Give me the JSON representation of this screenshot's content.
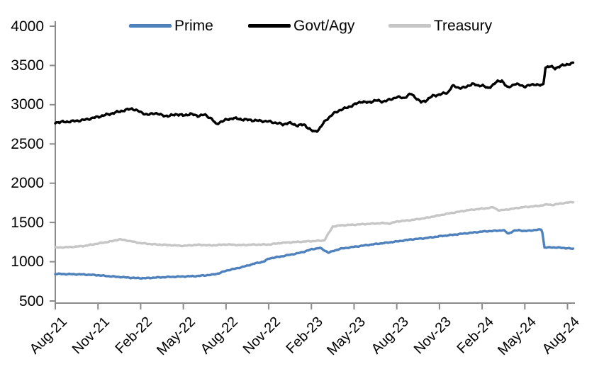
{
  "chart_data": {
    "type": "line",
    "title": "",
    "xlabel": "",
    "ylabel": "",
    "grid": false,
    "legend_position": "top",
    "ylim": [
      500,
      4000
    ],
    "y_ticks": [
      4000,
      3500,
      3000,
      2500,
      2000,
      1500,
      1000,
      500
    ],
    "x_tick_labels": [
      "Aug-21",
      "Nov-21",
      "Feb-22",
      "May-22",
      "Aug-22",
      "Nov-22",
      "Feb-23",
      "May-23",
      "Aug-23",
      "Nov-23",
      "Feb-24",
      "May-24",
      "Aug-24"
    ],
    "x_unit": "month_index_from_Aug-21",
    "x_range_months": [
      0,
      36.4
    ],
    "series": [
      {
        "name": "Treasury",
        "color": "#C6C6C6",
        "points_month_value": [
          [
            0,
            1180
          ],
          [
            1,
            1186
          ],
          [
            2,
            1200
          ],
          [
            3,
            1232
          ],
          [
            4,
            1262
          ],
          [
            4.5,
            1286
          ],
          [
            5,
            1272
          ],
          [
            6,
            1236
          ],
          [
            7,
            1221
          ],
          [
            8,
            1212
          ],
          [
            9,
            1202
          ],
          [
            10,
            1216
          ],
          [
            11,
            1208
          ],
          [
            12,
            1220
          ],
          [
            13,
            1212
          ],
          [
            14,
            1218
          ],
          [
            15,
            1219
          ],
          [
            16,
            1242
          ],
          [
            17,
            1252
          ],
          [
            18,
            1262
          ],
          [
            18.9,
            1270
          ],
          [
            19.5,
            1448
          ],
          [
            20,
            1462
          ],
          [
            21,
            1472
          ],
          [
            22,
            1482
          ],
          [
            23,
            1492
          ],
          [
            23.5,
            1486
          ],
          [
            24,
            1512
          ],
          [
            25,
            1530
          ],
          [
            26,
            1556
          ],
          [
            27,
            1592
          ],
          [
            28,
            1626
          ],
          [
            29,
            1656
          ],
          [
            30,
            1676
          ],
          [
            30.8,
            1692
          ],
          [
            31.2,
            1652
          ],
          [
            31.6,
            1662
          ],
          [
            32,
            1670
          ],
          [
            32.5,
            1686
          ],
          [
            33,
            1696
          ],
          [
            34,
            1712
          ],
          [
            34.6,
            1730
          ],
          [
            35,
            1722
          ],
          [
            35.4,
            1740
          ],
          [
            36,
            1752
          ],
          [
            36.4,
            1762
          ]
        ]
      },
      {
        "name": "Prime",
        "color": "#4F81BD",
        "points_month_value": [
          [
            0,
            845
          ],
          [
            1,
            842
          ],
          [
            2,
            838
          ],
          [
            3,
            828
          ],
          [
            4,
            812
          ],
          [
            5,
            800
          ],
          [
            5.7,
            792
          ],
          [
            6.3,
            790
          ],
          [
            7,
            798
          ],
          [
            8,
            806
          ],
          [
            9,
            812
          ],
          [
            10,
            818
          ],
          [
            11,
            834
          ],
          [
            11.5,
            852
          ],
          [
            12,
            886
          ],
          [
            13,
            926
          ],
          [
            14,
            976
          ],
          [
            14.7,
            1005
          ],
          [
            15,
            1040
          ],
          [
            16,
            1072
          ],
          [
            17,
            1106
          ],
          [
            17.5,
            1128
          ],
          [
            18,
            1158
          ],
          [
            18.6,
            1176
          ],
          [
            19.2,
            1116
          ],
          [
            19.6,
            1140
          ],
          [
            20,
            1164
          ],
          [
            21,
            1190
          ],
          [
            22,
            1214
          ],
          [
            23,
            1236
          ],
          [
            24,
            1258
          ],
          [
            25,
            1284
          ],
          [
            26,
            1300
          ],
          [
            27,
            1324
          ],
          [
            28,
            1344
          ],
          [
            29,
            1364
          ],
          [
            30,
            1384
          ],
          [
            30.5,
            1390
          ],
          [
            31,
            1394
          ],
          [
            31.5,
            1402
          ],
          [
            31.85,
            1357
          ],
          [
            32.2,
            1392
          ],
          [
            32.6,
            1402
          ],
          [
            33,
            1390
          ],
          [
            33.5,
            1400
          ],
          [
            34,
            1408
          ],
          [
            34.2,
            1414
          ],
          [
            34.38,
            1180
          ],
          [
            35,
            1183
          ],
          [
            35.5,
            1178
          ],
          [
            36,
            1172
          ],
          [
            36.4,
            1164
          ]
        ]
      },
      {
        "name": "Govt/Agy",
        "color": "#000000",
        "points_month_value": [
          [
            0,
            2775
          ],
          [
            1,
            2785
          ],
          [
            2,
            2805
          ],
          [
            3,
            2845
          ],
          [
            4,
            2890
          ],
          [
            5,
            2935
          ],
          [
            5.4,
            2950
          ],
          [
            6,
            2905
          ],
          [
            6.5,
            2870
          ],
          [
            7,
            2895
          ],
          [
            7.5,
            2865
          ],
          [
            8,
            2855
          ],
          [
            8.5,
            2880
          ],
          [
            9,
            2862
          ],
          [
            9.5,
            2882
          ],
          [
            10,
            2858
          ],
          [
            10.5,
            2872
          ],
          [
            11,
            2822
          ],
          [
            11.3,
            2748
          ],
          [
            11.6,
            2782
          ],
          [
            12,
            2806
          ],
          [
            12.5,
            2830
          ],
          [
            13,
            2815
          ],
          [
            14,
            2800
          ],
          [
            15,
            2786
          ],
          [
            15.5,
            2770
          ],
          [
            16,
            2748
          ],
          [
            16.4,
            2770
          ],
          [
            17,
            2736
          ],
          [
            17.5,
            2745
          ],
          [
            18,
            2672
          ],
          [
            18.2,
            2655
          ],
          [
            18.5,
            2680
          ],
          [
            19,
            2800
          ],
          [
            19.5,
            2880
          ],
          [
            20,
            2932
          ],
          [
            20.5,
            2962
          ],
          [
            21,
            3000
          ],
          [
            21.5,
            3040
          ],
          [
            22,
            3026
          ],
          [
            22.5,
            3056
          ],
          [
            23,
            3040
          ],
          [
            23.5,
            3062
          ],
          [
            24,
            3098
          ],
          [
            24.5,
            3085
          ],
          [
            25,
            3140
          ],
          [
            25.7,
            3032
          ],
          [
            26,
            3048
          ],
          [
            26.5,
            3110
          ],
          [
            27,
            3130
          ],
          [
            27.6,
            3155
          ],
          [
            27.9,
            3240
          ],
          [
            28.4,
            3215
          ],
          [
            28.8,
            3218
          ],
          [
            29.3,
            3268
          ],
          [
            29.7,
            3240
          ],
          [
            30,
            3252
          ],
          [
            30.4,
            3205
          ],
          [
            31,
            3288
          ],
          [
            31.4,
            3308
          ],
          [
            31.8,
            3212
          ],
          [
            32.3,
            3268
          ],
          [
            33,
            3232
          ],
          [
            33.7,
            3262
          ],
          [
            34.1,
            3246
          ],
          [
            34.3,
            3252
          ],
          [
            34.45,
            3478
          ],
          [
            34.8,
            3488
          ],
          [
            35.1,
            3462
          ],
          [
            35.5,
            3492
          ],
          [
            36,
            3516
          ],
          [
            36.4,
            3528
          ]
        ]
      }
    ]
  },
  "legend": {
    "items": [
      {
        "label": "Prime",
        "color": "#4F81BD"
      },
      {
        "label": "Govt/Agy",
        "color": "#000000"
      },
      {
        "label": "Treasury",
        "color": "#C6C6C6"
      }
    ]
  },
  "axes": {
    "line_color": "#8A8A8A",
    "tick_color": "#8A8A8A",
    "label_color": "#000000"
  }
}
